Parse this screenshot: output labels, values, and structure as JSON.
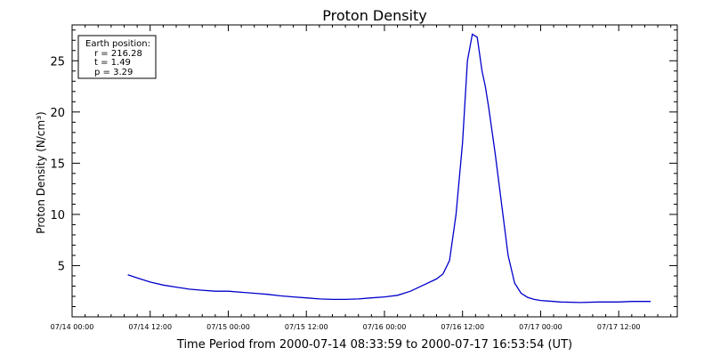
{
  "chart_data": {
    "type": "line",
    "title": "Proton Density",
    "xlabel": "Time Period from 2000-07-14 08:33:59 to 2000-07-17 16:53:54 (UT)",
    "ylabel": "Proton Density (N/cm³)",
    "grid": false,
    "legend": {
      "placement": "top-left",
      "lines": [
        "Earth position:",
        "r = 216.28",
        "t = 1.49",
        "p = 3.29"
      ]
    },
    "x_unit": "UT datetime",
    "xlim": [
      "2000-07-14 00:00",
      "2000-07-17 21:00"
    ],
    "ylim": [
      0,
      28.5
    ],
    "x_ticks": [
      {
        "value": "2000-07-14 00:00",
        "label": "07/14 00:00"
      },
      {
        "value": "2000-07-14 12:00",
        "label": "07/14 12:00"
      },
      {
        "value": "2000-07-15 00:00",
        "label": "07/15 00:00"
      },
      {
        "value": "2000-07-15 12:00",
        "label": "07/15 12:00"
      },
      {
        "value": "2000-07-16 00:00",
        "label": "07/16 00:00"
      },
      {
        "value": "2000-07-16 12:00",
        "label": "07/16 12:00"
      },
      {
        "value": "2000-07-17 00:00",
        "label": "07/17 00:00"
      },
      {
        "value": "2000-07-17 12:00",
        "label": "07/17 12:00"
      }
    ],
    "y_ticks": [
      {
        "value": 5,
        "label": "5"
      },
      {
        "value": 10,
        "label": "10"
      },
      {
        "value": 15,
        "label": "15"
      },
      {
        "value": 20,
        "label": "20"
      },
      {
        "value": 25,
        "label": "25"
      }
    ],
    "series": [
      {
        "color": "#0000cc",
        "x": [
          "2000-07-14 08:34",
          "2000-07-14 10:00",
          "2000-07-14 12:00",
          "2000-07-14 14:00",
          "2000-07-14 16:00",
          "2000-07-14 18:00",
          "2000-07-14 20:00",
          "2000-07-14 22:00",
          "2000-07-15 00:00",
          "2000-07-15 02:00",
          "2000-07-15 04:00",
          "2000-07-15 06:00",
          "2000-07-15 08:00",
          "2000-07-15 10:00",
          "2000-07-15 12:00",
          "2000-07-15 14:00",
          "2000-07-15 16:00",
          "2000-07-15 18:00",
          "2000-07-15 20:00",
          "2000-07-15 22:00",
          "2000-07-16 00:00",
          "2000-07-16 02:00",
          "2000-07-16 04:00",
          "2000-07-16 06:00",
          "2000-07-16 08:00",
          "2000-07-16 09:00",
          "2000-07-16 10:00",
          "2000-07-16 11:00",
          "2000-07-16 12:00",
          "2000-07-16 12:45",
          "2000-07-16 13:30",
          "2000-07-16 14:15",
          "2000-07-16 15:00",
          "2000-07-16 15:30",
          "2000-07-16 16:00",
          "2000-07-16 17:00",
          "2000-07-16 18:00",
          "2000-07-16 19:00",
          "2000-07-16 20:00",
          "2000-07-16 21:00",
          "2000-07-16 22:00",
          "2000-07-16 23:00",
          "2000-07-17 00:00",
          "2000-07-17 01:00",
          "2000-07-17 02:00",
          "2000-07-17 03:00",
          "2000-07-17 06:00",
          "2000-07-17 09:00",
          "2000-07-17 12:00",
          "2000-07-17 14:00",
          "2000-07-17 16:54"
        ],
        "y": [
          4.1,
          3.8,
          3.4,
          3.1,
          2.9,
          2.7,
          2.6,
          2.5,
          2.5,
          2.4,
          2.3,
          2.2,
          2.05,
          1.95,
          1.85,
          1.75,
          1.7,
          1.7,
          1.75,
          1.85,
          1.95,
          2.1,
          2.5,
          3.1,
          3.7,
          4.2,
          5.5,
          10.0,
          17.0,
          25.0,
          27.6,
          27.3,
          24.0,
          22.5,
          20.5,
          16.0,
          11.0,
          6.0,
          3.3,
          2.3,
          1.9,
          1.7,
          1.6,
          1.55,
          1.5,
          1.45,
          1.4,
          1.45,
          1.45,
          1.5,
          1.5
        ]
      }
    ]
  }
}
